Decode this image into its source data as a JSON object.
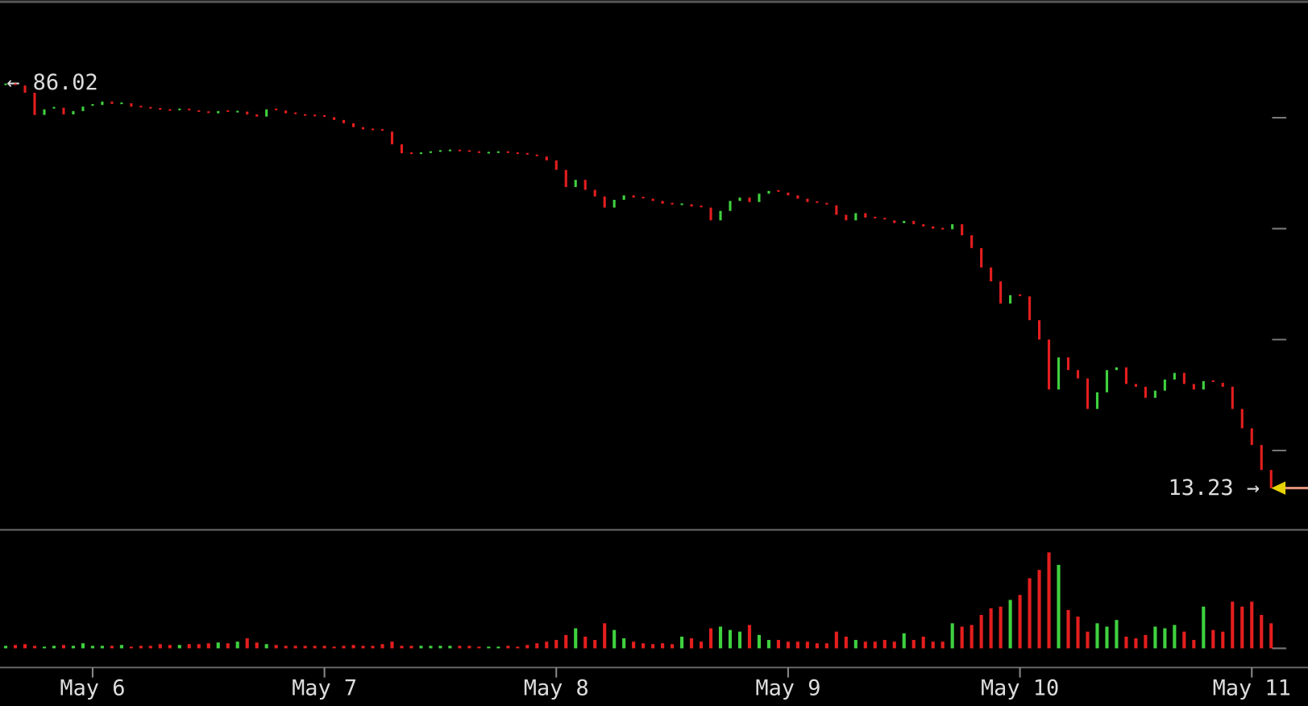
{
  "chart_data": {
    "type": "candlestick",
    "categories": [
      null,
      null,
      null,
      null,
      null,
      null,
      null,
      null,
      null,
      "May 6",
      null,
      null,
      null,
      null,
      null,
      null,
      null,
      null,
      null,
      null,
      null,
      null,
      null,
      null,
      null,
      null,
      null,
      null,
      null,
      null,
      null,
      null,
      null,
      "May 7",
      null,
      null,
      null,
      null,
      null,
      null,
      null,
      null,
      null,
      null,
      null,
      null,
      null,
      null,
      null,
      null,
      null,
      null,
      null,
      null,
      null,
      null,
      null,
      "May 8",
      null,
      null,
      null,
      null,
      null,
      null,
      null,
      null,
      null,
      null,
      null,
      null,
      null,
      null,
      null,
      null,
      null,
      null,
      null,
      null,
      null,
      null,
      null,
      "May 9",
      null,
      null,
      null,
      null,
      null,
      null,
      null,
      null,
      null,
      null,
      null,
      null,
      null,
      null,
      null,
      null,
      null,
      null,
      null,
      null,
      null,
      null,
      null,
      "May 10",
      null,
      null,
      null,
      null,
      null,
      null,
      null,
      null,
      null,
      null,
      null,
      null,
      null,
      null,
      null,
      null,
      null,
      null,
      null,
      null,
      null,
      null,
      null,
      "May 11",
      null,
      null
    ],
    "values": [
      86.02,
      85.8,
      84.5,
      80.5,
      81.5,
      81.8,
      80.6,
      81.2,
      82.0,
      82.3,
      82.9,
      82.5,
      82.6,
      82.0,
      81.8,
      81.6,
      81.4,
      81.3,
      81.5,
      81.2,
      81.0,
      80.8,
      81.2,
      80.9,
      81.1,
      80.6,
      80.2,
      81.5,
      81.3,
      80.8,
      80.5,
      80.4,
      80.3,
      80.1,
      79.6,
      79.0,
      78.3,
      77.9,
      77.8,
      77.5,
      75.2,
      73.6,
      73.3,
      73.6,
      73.8,
      74.0,
      74.1,
      74.0,
      73.8,
      73.5,
      73.7,
      73.8,
      73.6,
      73.5,
      73.2,
      73.0,
      72.3,
      70.6,
      67.5,
      68.8,
      67.0,
      65.8,
      63.8,
      65.2,
      66.0,
      65.6,
      65.4,
      65.0,
      64.5,
      64.2,
      64.4,
      64.0,
      63.8,
      61.5,
      63.2,
      65.0,
      65.6,
      64.8,
      66.3,
      66.8,
      66.5,
      66.0,
      65.4,
      64.8,
      64.5,
      64.2,
      62.5,
      61.5,
      62.8,
      62.0,
      61.8,
      61.5,
      61.0,
      61.4,
      60.8,
      60.4,
      60.0,
      59.9,
      60.8,
      58.8,
      56.5,
      53.0,
      50.5,
      46.5,
      48.0,
      47.8,
      43.5,
      40.0,
      31.0,
      36.8,
      34.5,
      33.0,
      27.5,
      30.5,
      34.5,
      35.0,
      32.0,
      31.5,
      29.5,
      30.8,
      32.8,
      34.0,
      32.0,
      31.0,
      32.5,
      32.2,
      31.5,
      27.5,
      24.0,
      21.0,
      16.5,
      13.23
    ],
    "volume": [
      3,
      4,
      5,
      3,
      2,
      3,
      4,
      3,
      6,
      3,
      3,
      3,
      4,
      2,
      3,
      3,
      5,
      4,
      4,
      5,
      5,
      6,
      7,
      6,
      8,
      12,
      7,
      5,
      4,
      3,
      3,
      3,
      3,
      3,
      2,
      3,
      4,
      3,
      3,
      5,
      8,
      3,
      3,
      3,
      3,
      3,
      3,
      3,
      3,
      2,
      2,
      2,
      3,
      2,
      4,
      6,
      8,
      10,
      16,
      24,
      14,
      10,
      30,
      22,
      12,
      8,
      6,
      5,
      6,
      5,
      14,
      12,
      8,
      24,
      26,
      22,
      20,
      28,
      16,
      10,
      10,
      8,
      8,
      8,
      6,
      6,
      20,
      14,
      10,
      8,
      8,
      10,
      8,
      18,
      10,
      14,
      8,
      8,
      30,
      26,
      28,
      40,
      48,
      50,
      58,
      64,
      84,
      94,
      115,
      100,
      46,
      38,
      20,
      30,
      26,
      34,
      14,
      12,
      16,
      26,
      24,
      28,
      20,
      10,
      50,
      22,
      20,
      56,
      50,
      56,
      40,
      30
    ],
    "ylim": [
      5.7,
      101.2
    ],
    "yticks": [
      20,
      40,
      60,
      80
    ],
    "vlim": [
      0,
      125
    ],
    "up_color": "#3fd13f",
    "down_color": "#e41e1e",
    "annotations": [
      "← 86.02",
      "13.23 →"
    ]
  }
}
